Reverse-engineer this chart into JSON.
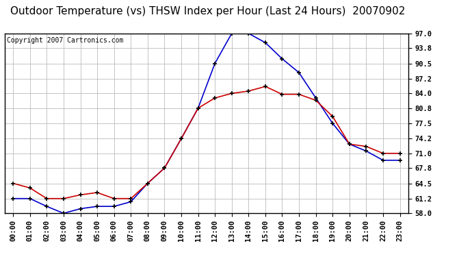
{
  "title": "Outdoor Temperature (vs) THSW Index per Hour (Last 24 Hours)  20070902",
  "copyright_text": "Copyright 2007 Cartronics.com",
  "hours": [
    "00:00",
    "01:00",
    "02:00",
    "03:00",
    "04:00",
    "05:00",
    "06:00",
    "07:00",
    "08:00",
    "09:00",
    "10:00",
    "11:00",
    "12:00",
    "13:00",
    "14:00",
    "15:00",
    "16:00",
    "17:00",
    "18:00",
    "19:00",
    "20:00",
    "21:00",
    "22:00",
    "23:00"
  ],
  "thsw": [
    61.2,
    61.2,
    59.5,
    58.0,
    59.0,
    59.5,
    59.5,
    60.5,
    64.5,
    67.8,
    74.2,
    80.8,
    90.5,
    97.0,
    97.0,
    95.0,
    91.5,
    88.5,
    83.0,
    77.5,
    73.0,
    71.5,
    69.5,
    69.5
  ],
  "temp": [
    64.5,
    63.5,
    61.2,
    61.2,
    62.0,
    62.5,
    61.2,
    61.2,
    64.5,
    67.8,
    74.2,
    80.8,
    83.0,
    84.0,
    84.5,
    85.5,
    83.8,
    83.8,
    82.5,
    79.0,
    73.0,
    72.5,
    71.0,
    71.0
  ],
  "ylim": [
    58.0,
    97.0
  ],
  "yticks": [
    58.0,
    61.2,
    64.5,
    67.8,
    71.0,
    74.2,
    77.5,
    80.8,
    84.0,
    87.2,
    90.5,
    93.8,
    97.0
  ],
  "thsw_color": "#0000cc",
  "temp_color": "#cc0000",
  "grid_color": "#bbbbbb",
  "bg_color": "#ffffff",
  "title_fontsize": 11,
  "copyright_fontsize": 7,
  "tick_fontsize": 7.5
}
